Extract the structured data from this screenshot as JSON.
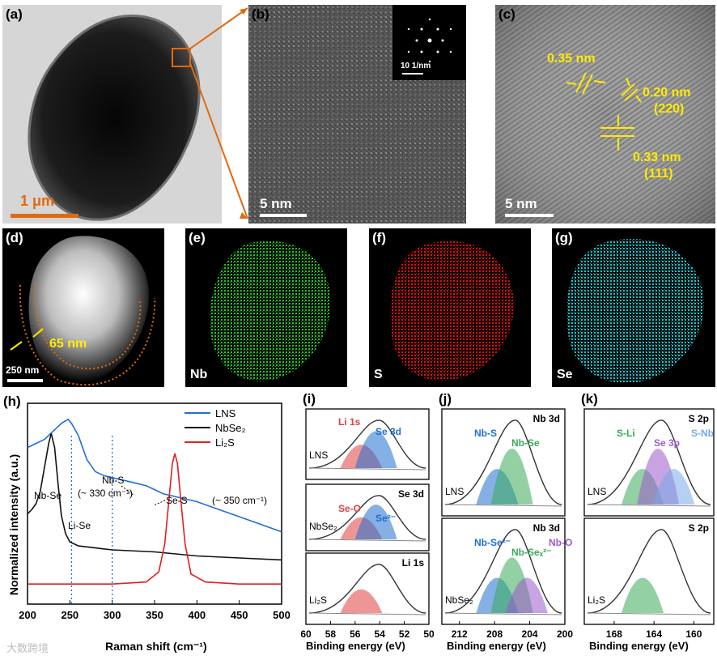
{
  "figure": {
    "panel_labels": [
      "(a)",
      "(b)",
      "(c)",
      "(d)",
      "(e)",
      "(f)",
      "(g)",
      "(h)",
      "(i)",
      "(j)",
      "(k)"
    ],
    "a": {
      "scale_bar": "1 μm"
    },
    "b": {
      "scale_bar": "5 nm",
      "inset_scale": "10 1/nm"
    },
    "c": {
      "scale_bar": "5 nm",
      "annotations": [
        "0.35 nm",
        "0.20 nm",
        "(220)",
        "0.33 nm",
        "(111)"
      ]
    },
    "d": {
      "scale_bar": "250 nm",
      "thickness": "65 nm"
    },
    "e": {
      "element": "Nb",
      "color": "#27c427"
    },
    "f": {
      "element": "S",
      "color": "#e01010"
    },
    "g": {
      "element": "Se",
      "color": "#19c8cf"
    },
    "watermark": "大数跨境"
  },
  "chart_data": [
    {
      "panel": "(h)",
      "type": "line",
      "xlabel": "Raman shift (cm⁻¹)",
      "ylabel": "Normalized intensity (a.u.)",
      "xlim": [
        200,
        500
      ],
      "xticks": [
        200,
        250,
        300,
        350,
        400,
        450,
        500
      ],
      "series": [
        {
          "name": "LNS",
          "color": "#1f6fd0",
          "x": [
            200,
            210,
            220,
            230,
            240,
            248,
            252,
            260,
            270,
            280,
            290,
            300,
            310,
            320,
            330,
            340,
            350,
            360,
            370,
            380,
            390,
            400,
            420,
            440,
            460,
            480,
            500
          ],
          "y": [
            0.78,
            0.8,
            0.82,
            0.86,
            0.9,
            0.92,
            0.9,
            0.84,
            0.72,
            0.66,
            0.64,
            0.63,
            0.62,
            0.61,
            0.6,
            0.59,
            0.57,
            0.55,
            0.54,
            0.53,
            0.52,
            0.51,
            0.48,
            0.45,
            0.42,
            0.39,
            0.36
          ]
        },
        {
          "name": "NbSe₂",
          "color": "#111111",
          "x": [
            200,
            205,
            210,
            215,
            220,
            225,
            228,
            232,
            236,
            240,
            245,
            250,
            260,
            280,
            300,
            350,
            400,
            450,
            500
          ],
          "y": [
            0.45,
            0.47,
            0.5,
            0.56,
            0.68,
            0.8,
            0.85,
            0.78,
            0.6,
            0.44,
            0.35,
            0.31,
            0.29,
            0.28,
            0.27,
            0.26,
            0.24,
            0.23,
            0.22
          ]
        },
        {
          "name": "Li₂S",
          "color": "#e02020",
          "x": [
            200,
            250,
            300,
            340,
            355,
            362,
            367,
            371,
            374,
            377,
            381,
            386,
            393,
            410,
            450,
            500
          ],
          "y": [
            0.1,
            0.1,
            0.1,
            0.11,
            0.16,
            0.3,
            0.52,
            0.7,
            0.75,
            0.7,
            0.52,
            0.3,
            0.15,
            0.11,
            0.1,
            0.1
          ]
        }
      ],
      "vlines": [
        252,
        300
      ],
      "annotations": [
        "Nb-Se",
        "Li-Se",
        "Nb-S",
        "(~ 330 cm⁻¹)",
        "Se-S",
        "(~ 350 cm⁻¹)"
      ]
    },
    {
      "panel": "(i)",
      "type": "line",
      "xlabel": "Binding energy (eV)",
      "xlim": [
        60,
        50
      ],
      "xticks": [
        60,
        58,
        56,
        54,
        52,
        50
      ],
      "subplots": [
        {
          "sample": "LNS",
          "title": "",
          "peaks": [
            "Li 1s",
            "Se 3d"
          ]
        },
        {
          "sample": "NbSe₂",
          "title": "Se 3d",
          "peaks": [
            "Se-O",
            "Se²⁻"
          ]
        },
        {
          "sample": "Li₂S",
          "title": "Li 1s",
          "peaks": []
        }
      ]
    },
    {
      "panel": "(j)",
      "type": "line",
      "xlabel": "Binding energy (eV)",
      "xlim": [
        214,
        200
      ],
      "xticks": [
        212,
        208,
        204,
        200
      ],
      "subplots": [
        {
          "sample": "LNS",
          "title": "Nb 3d",
          "peaks": [
            "Nb-S",
            "Nb-Se"
          ]
        },
        {
          "sample": "NbSe₂",
          "title": "Nb 3d",
          "peaks": [
            "Nb-Se²⁻",
            "Nb-Seₓ²⁻",
            "Nb-O"
          ]
        }
      ]
    },
    {
      "panel": "(k)",
      "type": "line",
      "xlabel": "Binding energy (eV)",
      "xlim": [
        171,
        158
      ],
      "xticks": [
        168,
        164,
        160
      ],
      "subplots": [
        {
          "sample": "LNS",
          "title": "S 2p",
          "peaks": [
            "S-Li",
            "Se 3p",
            "S-Nb"
          ]
        },
        {
          "sample": "Li₂S",
          "title": "S 2p",
          "peaks": []
        }
      ]
    }
  ]
}
